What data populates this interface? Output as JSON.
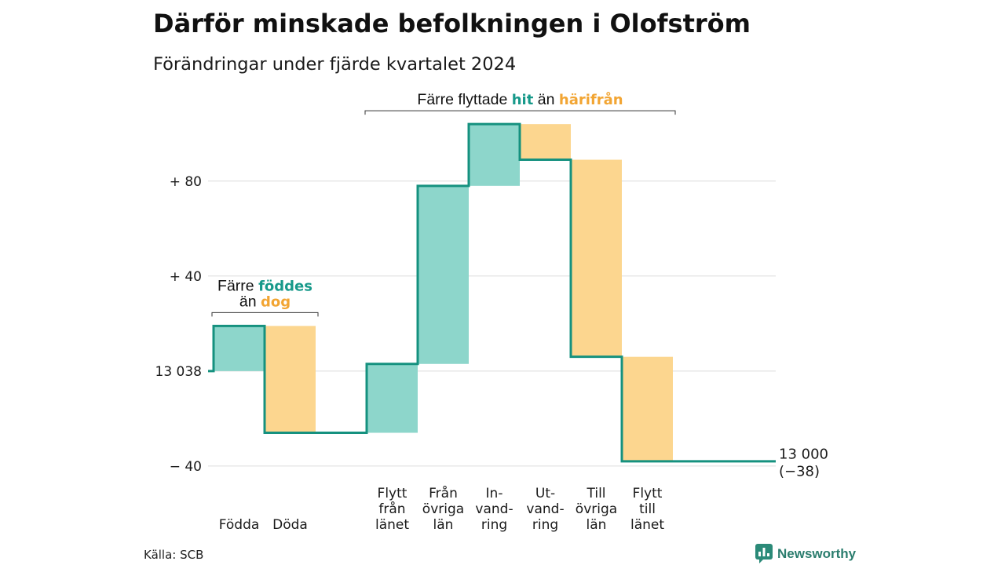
{
  "chart_data": {
    "type": "bar",
    "waterfall": true,
    "title": "Därför minskade befolkningen i Olofström",
    "subtitle": "Förändringar under fjärde kvartalet 2024",
    "start_population": 13038,
    "ylim": [
      -45,
      110
    ],
    "grid": true,
    "yticks": [
      {
        "value": 80,
        "label": "+ 80"
      },
      {
        "value": 40,
        "label": "+ 40"
      },
      {
        "value": 0,
        "label": "13 038"
      },
      {
        "value": -40,
        "label": "− 40"
      }
    ],
    "categories": [
      {
        "label": [
          "Födda"
        ],
        "value": 19,
        "group": 0
      },
      {
        "label": [
          "Döda"
        ],
        "value": -45,
        "group": 0
      },
      {
        "label": [
          "Flytt",
          "från",
          "länet"
        ],
        "value": 29,
        "group": 1
      },
      {
        "label": [
          "Från",
          "övriga",
          "län"
        ],
        "value": 75,
        "group": 1
      },
      {
        "label": [
          "In-",
          "vand-",
          "ring"
        ],
        "value": 26,
        "group": 1
      },
      {
        "label": [
          "Ut-",
          "vand-",
          "ring"
        ],
        "value": -15,
        "group": 1
      },
      {
        "label": [
          "Till",
          "övriga",
          "län"
        ],
        "value": -83,
        "group": 1
      },
      {
        "label": [
          "Flytt",
          "till",
          "länet"
        ],
        "value": -44,
        "group": 1
      }
    ],
    "end": {
      "population": 13000,
      "change": -38,
      "labels": [
        "13 000",
        "(−38)"
      ]
    },
    "annotations": [
      {
        "group": 0,
        "lines": [
          [
            {
              "text": "Färre",
              "color": "#111111",
              "bold": false
            },
            {
              "text": "föddes",
              "color": "#17998a",
              "bold": true
            }
          ],
          [
            {
              "text": "än",
              "color": "#111111",
              "bold": false
            },
            {
              "text": "dog",
              "color": "#f2a533",
              "bold": true
            }
          ]
        ]
      },
      {
        "group": 1,
        "lines": [
          [
            {
              "text": "Färre flyttade",
              "color": "#111111",
              "bold": false
            },
            {
              "text": "hit",
              "color": "#17998a",
              "bold": true
            },
            {
              "text": "än",
              "color": "#111111",
              "bold": false
            },
            {
              "text": "härifrån",
              "color": "#f2a533",
              "bold": true
            }
          ]
        ]
      }
    ]
  },
  "source": "Källa: SCB",
  "logo": {
    "text": "Newsworthy",
    "icon": "newsworthy-logo-icon"
  },
  "colors": {
    "line": "#15917f",
    "increase_fill": "#8dd6cb",
    "decrease_fill": "#fcd68f",
    "grid": "#dcdcdc",
    "bracket": "#333333",
    "logo": "#2b8a78"
  }
}
